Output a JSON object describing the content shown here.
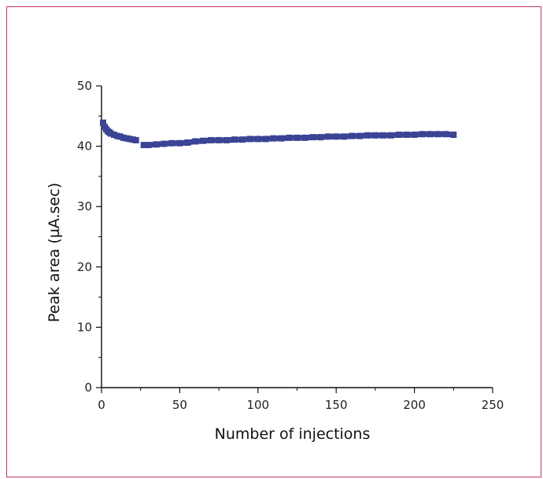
{
  "colors": {
    "frame": "#c8385a",
    "axis": "#111111",
    "series": "#3b4494"
  },
  "chart_data": {
    "type": "scatter",
    "title": "",
    "xlabel": "Number of injections",
    "ylabel": "Peak area (µA.sec)",
    "xlim": [
      0,
      250
    ],
    "ylim": [
      0,
      50
    ],
    "xticks": [
      0,
      50,
      100,
      150,
      200,
      250
    ],
    "yticks": [
      0,
      10,
      20,
      30,
      40,
      50
    ],
    "x_tick_labels": [
      "0",
      "50",
      "100",
      "150",
      "200",
      "250"
    ],
    "y_tick_labels": [
      "0",
      "10",
      "20",
      "30",
      "40",
      "50"
    ],
    "grid": false,
    "legend": "none",
    "series": [
      {
        "x": [
          1,
          2,
          3,
          4,
          5,
          6,
          8,
          10,
          12,
          14,
          16,
          18,
          20,
          22,
          27,
          30,
          35,
          40,
          45,
          50,
          55,
          60,
          65,
          70,
          75,
          80,
          85,
          90,
          95,
          100,
          105,
          110,
          115,
          120,
          125,
          130,
          135,
          140,
          145,
          150,
          155,
          160,
          165,
          170,
          175,
          180,
          185,
          190,
          195,
          200,
          205,
          210,
          215,
          220,
          225
        ],
        "y": [
          43.9,
          43.2,
          42.8,
          42.5,
          42.3,
          42.1,
          41.9,
          41.7,
          41.6,
          41.4,
          41.3,
          41.2,
          41.1,
          41.0,
          40.2,
          40.2,
          40.3,
          40.4,
          40.5,
          40.5,
          40.6,
          40.8,
          40.9,
          41.0,
          41.0,
          41.0,
          41.1,
          41.1,
          41.2,
          41.2,
          41.2,
          41.3,
          41.3,
          41.4,
          41.4,
          41.4,
          41.5,
          41.5,
          41.6,
          41.6,
          41.6,
          41.7,
          41.7,
          41.8,
          41.8,
          41.8,
          41.8,
          41.9,
          41.9,
          41.9,
          42.0,
          42.0,
          42.0,
          42.0,
          41.9
        ]
      }
    ]
  }
}
